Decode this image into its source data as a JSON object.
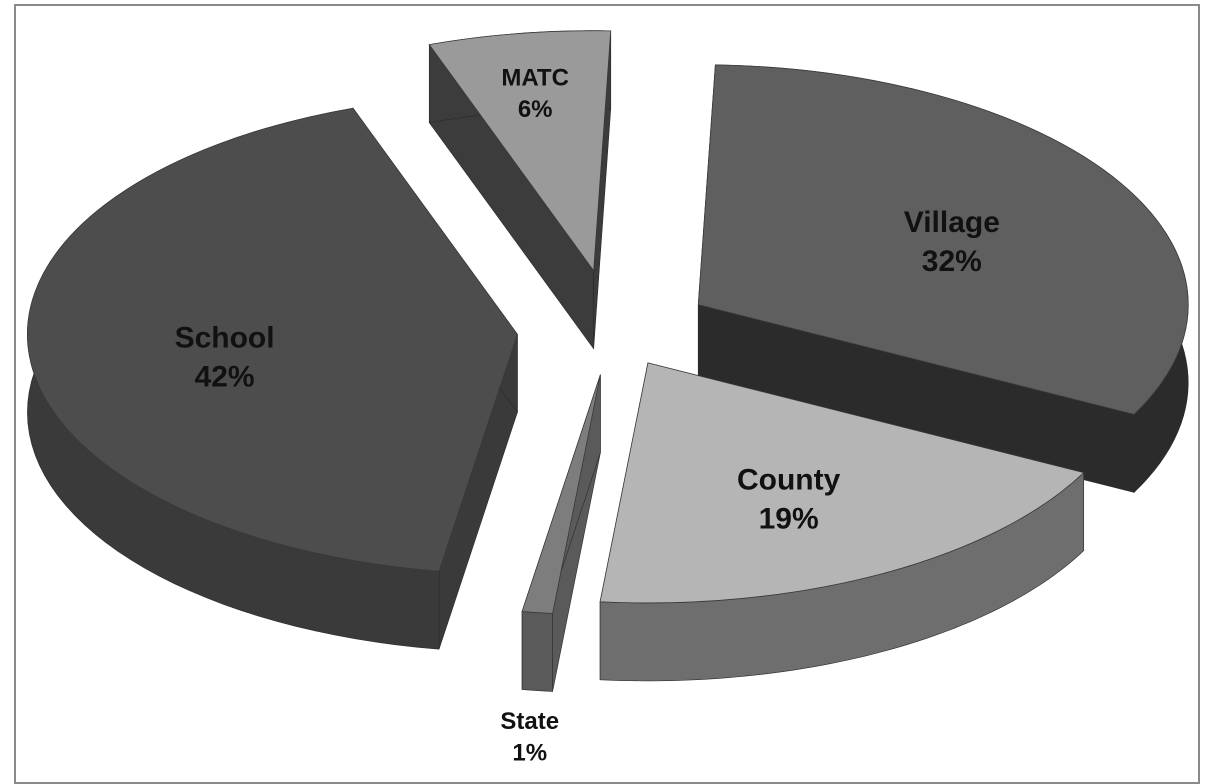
{
  "chart_data": {
    "type": "pie",
    "title": "",
    "style": "3d-exploded",
    "slices": [
      {
        "name": "Village",
        "percent_label": "32%",
        "value": 32,
        "color": "#5f5f5f",
        "side_color": "#2b2b2b"
      },
      {
        "name": "County",
        "percent_label": "19%",
        "value": 19,
        "color": "#b5b5b5",
        "side_color": "#6e6e6e"
      },
      {
        "name": "State",
        "percent_label": "1%",
        "value": 1,
        "color": "#7d7d7d",
        "side_color": "#5a5a5a"
      },
      {
        "name": "School",
        "percent_label": "42%",
        "value": 42,
        "color": "#4d4d4d",
        "side_color": "#3a3a3a"
      },
      {
        "name": "MATC",
        "percent_label": "6%",
        "value": 6,
        "color": "#9a9a9a",
        "side_color": "#3c3c3c"
      }
    ]
  }
}
